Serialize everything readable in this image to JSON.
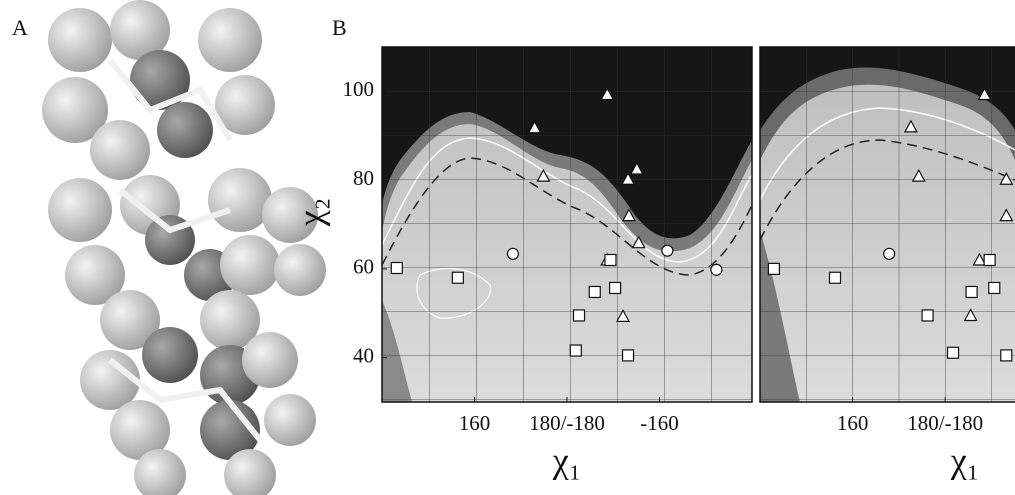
{
  "panel_labels": [
    "A",
    "B"
  ],
  "chart_data": [
    {
      "type": "scatter",
      "x_label": "χ₁",
      "y_label": "χ₂",
      "xlim": [
        140,
        220
      ],
      "ylim": [
        30,
        110
      ],
      "xticks": [
        160,
        {
          "value": 180,
          "label": "180/-180"
        },
        {
          "value": 200,
          "label": "-160"
        }
      ],
      "yticks": [
        40,
        60,
        80,
        100
      ],
      "series": [
        {
          "marker": "triangle",
          "color": "#ffffff",
          "x": [
            188.7,
            173,
            195.1,
            193.2,
            174.9,
            193.4,
            195.5,
            188.7,
            192.1
          ],
          "values": [
            99.3,
            91.8,
            82.5,
            80.2,
            80.9,
            72,
            65.9,
            62,
            49.3
          ]
        },
        {
          "marker": "circle",
          "color": "#ffffff",
          "x": [
            168.3,
            201.7,
            212.3
          ],
          "values": [
            63.4,
            64.1,
            59.8
          ]
        },
        {
          "marker": "square",
          "color": "#ffffff",
          "x": [
            143.2,
            156.4,
            182.6,
            186,
            190.4,
            189.4,
            181.9,
            193.2
          ],
          "values": [
            60.2,
            58,
            49.5,
            54.8,
            55.7,
            62,
            41.6,
            40.5
          ]
        }
      ]
    },
    {
      "type": "scatter",
      "x_label": "χ₁",
      "xlim": [
        140,
        194
      ],
      "ylim": [
        30,
        110
      ],
      "xticks": [
        160,
        {
          "value": 180,
          "label": "180/-180"
        }
      ],
      "series": [
        {
          "marker": "triangle",
          "color": "#ffffff",
          "x": [
            188.5,
            172.6,
            174.3,
            193.2,
            193.2,
            185.5,
            187.4
          ],
          "values": [
            99.3,
            92,
            80.9,
            80.2,
            72,
            49.5,
            62
          ]
        },
        {
          "marker": "circle",
          "color": "#ffffff",
          "x": [
            167.9
          ],
          "values": [
            63.4
          ]
        },
        {
          "marker": "square",
          "color": "#ffffff",
          "x": [
            143,
            156.2,
            176.2,
            185.7,
            190.6,
            189.6,
            181.7,
            193.2
          ],
          "values": [
            60,
            58,
            49.5,
            54.8,
            55.7,
            62,
            41.1,
            40.5
          ]
        }
      ]
    }
  ]
}
